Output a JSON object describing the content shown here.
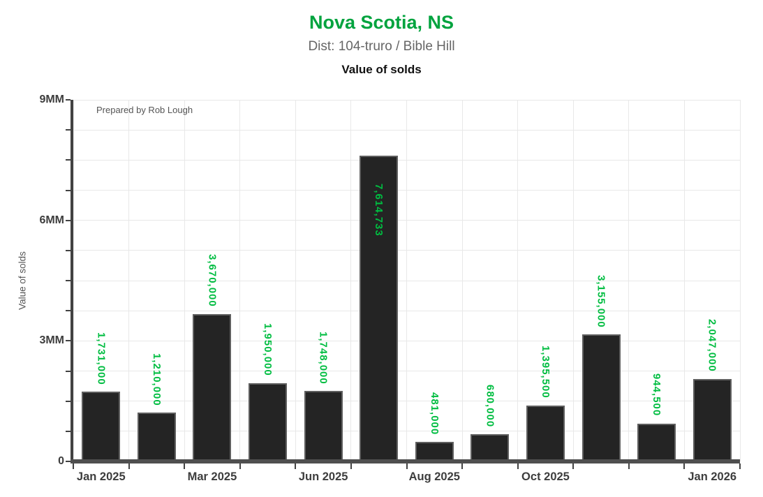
{
  "header": {
    "title": "Nova Scotia, NS",
    "subtitle": "Dist: 104-truro / Bible Hill",
    "chart_title": "Value of solds"
  },
  "annotation": "Prepared by Rob Lough",
  "colors": {
    "title_green": "#00A33E",
    "value_label_green": "#00BD41",
    "bar_fill": "#242424",
    "bar_border": "#5f5f5f",
    "axis_line": "#4a4a4a",
    "tick_label": "#3d3d3d",
    "gridline": "#e8e8e8",
    "subtitle_gray": "#666666",
    "annotation_gray": "#555555"
  },
  "chart_data": {
    "type": "bar",
    "title": "Value of solds",
    "xlabel": "",
    "ylabel": "Value of solds",
    "ylim": [
      0,
      9000000
    ],
    "grid": "on",
    "legend": "none",
    "y_major_ticks": [
      {
        "value": 0,
        "label": "0"
      },
      {
        "value": 3000000,
        "label": "3MM"
      },
      {
        "value": 6000000,
        "label": "6MM"
      },
      {
        "value": 9000000,
        "label": "9MM"
      }
    ],
    "y_minor_step": 750000,
    "num_slots": 12,
    "bars": [
      {
        "value": 1731000,
        "label": "1,731,000",
        "label_position": "outside"
      },
      {
        "value": 1210000,
        "label": "1,210,000",
        "label_position": "outside"
      },
      {
        "value": 3670000,
        "label": "3,670,000",
        "label_position": "outside"
      },
      {
        "value": 1950000,
        "label": "1,950,000",
        "label_position": "outside"
      },
      {
        "value": 1748000,
        "label": "1,748,000",
        "label_position": "outside"
      },
      {
        "value": 7614733,
        "label": "7,614,733",
        "label_position": "inside"
      },
      {
        "value": 481000,
        "label": "481,000",
        "label_position": "outside"
      },
      {
        "value": 680000,
        "label": "680,000",
        "label_position": "outside"
      },
      {
        "value": 1395500,
        "label": "1,395,500",
        "label_position": "outside"
      },
      {
        "value": 3155000,
        "label": "3,155,000",
        "label_position": "outside"
      },
      {
        "value": 944500,
        "label": "944,500",
        "label_position": "outside"
      },
      {
        "value": 2047000,
        "label": "2,047,000",
        "label_position": "outside"
      }
    ],
    "x_ticks": [
      {
        "slot": 0,
        "label": "Jan 2025"
      },
      {
        "slot": 2,
        "label": "Mar 2025"
      },
      {
        "slot": 4,
        "label": "Jun 2025"
      },
      {
        "slot": 6,
        "label": "Aug 2025"
      },
      {
        "slot": 8,
        "label": "Oct 2025"
      },
      {
        "slot": 11,
        "label": "Jan 2026"
      }
    ]
  }
}
